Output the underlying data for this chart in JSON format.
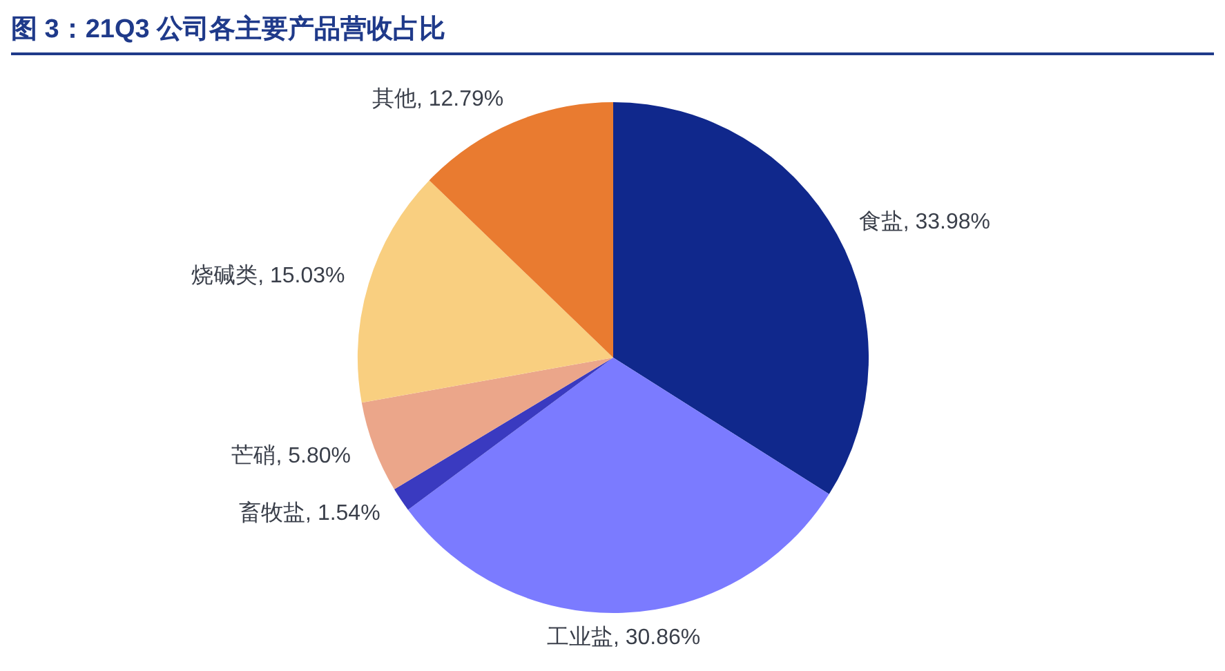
{
  "chart_data": {
    "type": "pie",
    "title": "图 3：21Q3 公司各主要产品营收占比",
    "categories": [
      "食盐",
      "工业盐",
      "畜牧盐",
      "芒硝",
      "烧碱类",
      "其他"
    ],
    "values": [
      33.98,
      30.86,
      1.54,
      5.8,
      15.03,
      12.79
    ],
    "value_labels": [
      "33.98%",
      "30.86%",
      "1.54%",
      "5.80%",
      "15.03%",
      "12.79%"
    ],
    "colors": [
      "#10288c",
      "#7b7bff",
      "#3a3ac0",
      "#eba68a",
      "#f9cf80",
      "#e97b30"
    ],
    "legend": false
  }
}
